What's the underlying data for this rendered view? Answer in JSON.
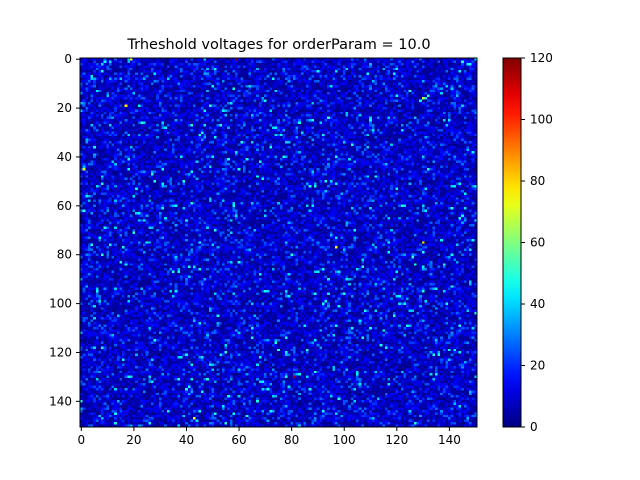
{
  "chart_data": {
    "type": "heatmap",
    "title": "Trheshold voltages for orderParam = 10.0",
    "grid_size": [
      151,
      151
    ],
    "colormap": "jet",
    "color_range": [
      0,
      120
    ],
    "typical_value_range": [
      0,
      30
    ],
    "notable_points": [
      {
        "row": 0,
        "col": 59,
        "value": 118
      },
      {
        "row": 130,
        "col": 81,
        "value": 115
      },
      {
        "row": 19,
        "col": 17,
        "value": 78
      },
      {
        "row": 75,
        "col": 130,
        "value": 80
      },
      {
        "row": 77,
        "col": 97,
        "value": 76
      },
      {
        "row": 45,
        "col": 1,
        "value": 72
      },
      {
        "row": 147,
        "col": 43,
        "value": 74
      },
      {
        "row": 16,
        "col": 130,
        "value": 70
      },
      {
        "row": 0,
        "col": 19,
        "value": 70
      }
    ],
    "x_ticks": [
      "0",
      "20",
      "40",
      "60",
      "80",
      "100",
      "120",
      "140"
    ],
    "y_ticks": [
      "0",
      "20",
      "40",
      "60",
      "80",
      "100",
      "120",
      "140"
    ],
    "colorbar_ticks": [
      "0",
      "20",
      "40",
      "60",
      "80",
      "100",
      "120"
    ],
    "xlim": [
      -0.5,
      150.5
    ],
    "ylim": [
      150.5,
      -0.5
    ],
    "grid": false
  }
}
